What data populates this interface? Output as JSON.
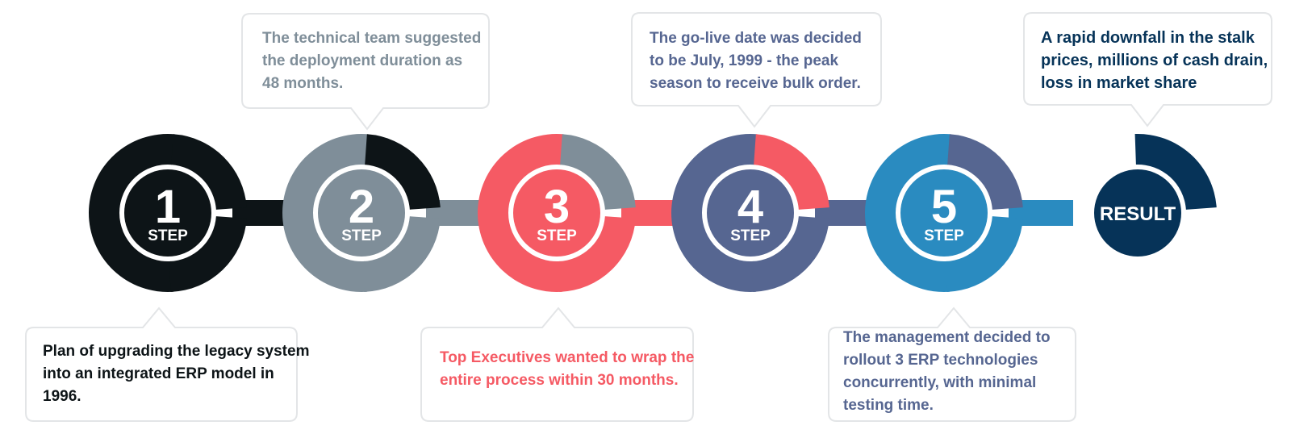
{
  "steps": [
    {
      "number": "1",
      "label": "STEP",
      "color": "#0d1417",
      "note": "Plan of upgrading the legacy system\ninto an integrated ERP model in\n1996.",
      "note_color": "#0d1417"
    },
    {
      "number": "2",
      "label": "STEP",
      "color": "#7f8e99",
      "note": "The technical team suggested\nthe deployment duration as\n48 months.",
      "note_color": "#7f8e99"
    },
    {
      "number": "3",
      "label": "STEP",
      "color": "#f55a64",
      "note": "Top Executives wanted to wrap the\nentire process within 30 months.",
      "note_color": "#f55a64"
    },
    {
      "number": "4",
      "label": "STEP",
      "color": "#566691",
      "note": "The go-live date was decided\nto be July, 1999 - the peak\nseason to receive bulk order.",
      "note_color": "#566691"
    },
    {
      "number": "5",
      "label": "STEP",
      "color": "#2a8bc0",
      "note": "The management decided to\nrollout 3 ERP technologies\nconcurrently, with minimal\ntesting time.",
      "note_color": "#566691"
    }
  ],
  "result": {
    "label": "RESULT",
    "color": "#063358",
    "note": "A rapid downfall in the stalk\nprices, millions of cash drain,\nloss in market share",
    "note_color": "#063358"
  },
  "colors": {
    "callout_border": "#e3e5e7",
    "background": "#ffffff"
  }
}
